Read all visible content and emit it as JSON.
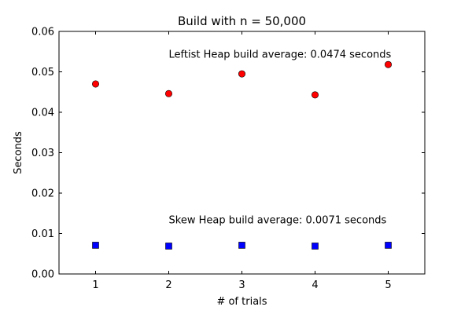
{
  "chart_data": {
    "type": "scatter",
    "title": "Build with n = 50,000",
    "xlabel": "# of trials",
    "ylabel": "Seconds",
    "xlim": [
      0.5,
      5.5
    ],
    "ylim": [
      0.0,
      0.06
    ],
    "xticks": [
      1,
      2,
      3,
      4,
      5
    ],
    "xtick_labels": [
      "1",
      "2",
      "3",
      "4",
      "5"
    ],
    "yticks": [
      0.0,
      0.01,
      0.02,
      0.03,
      0.04,
      0.05,
      0.06
    ],
    "ytick_labels": [
      "0.00",
      "0.01",
      "0.02",
      "0.03",
      "0.04",
      "0.05",
      "0.06"
    ],
    "grid": false,
    "series": [
      {
        "color": "#ff0000",
        "marker": "circle",
        "x": [
          1,
          2,
          3,
          4,
          5
        ],
        "y": [
          0.047,
          0.0446,
          0.0495,
          0.0443,
          0.0518
        ]
      },
      {
        "color": "#0000ff",
        "marker": "square",
        "x": [
          1,
          2,
          3,
          4,
          5
        ],
        "y": [
          0.0071,
          0.0069,
          0.0071,
          0.0069,
          0.0071
        ]
      }
    ],
    "annotations": [
      {
        "text": "Leftist Heap build average: 0.0474 seconds",
        "x": 2.0,
        "y": 0.0535
      },
      {
        "text": "Skew Heap build average: 0.0071 seconds",
        "x": 2.0,
        "y": 0.0125
      }
    ]
  }
}
